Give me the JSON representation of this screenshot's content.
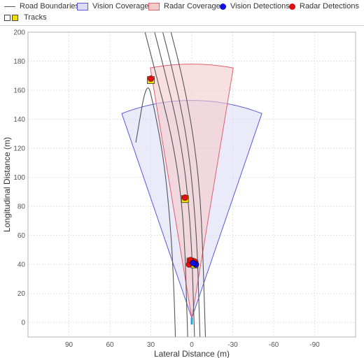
{
  "legend": {
    "items": [
      {
        "key": "road",
        "label": "Road Boundaries"
      },
      {
        "key": "vision_cov",
        "label": "Vision Coverage"
      },
      {
        "key": "radar_cov",
        "label": "Radar Coverage"
      },
      {
        "key": "vision_det",
        "label": "Vision Detections"
      },
      {
        "key": "radar_det",
        "label": "Radar Detections"
      },
      {
        "key": "tracks",
        "label": "Tracks"
      }
    ]
  },
  "colors": {
    "road": "#555555",
    "vision_fill": "#dcdcf5",
    "vision_edge": "#5a5ad6",
    "radar_fill": "#f5cccc",
    "radar_edge": "#e06070",
    "vision_det": "#1010e0",
    "radar_det": "#e01010",
    "track": "#f0e000",
    "grid": "#e4e4e4",
    "ego": "#2a9fd6"
  },
  "chart_data": {
    "type": "scatter",
    "title": "",
    "xlabel": "Lateral Distance (m)",
    "ylabel": "Longitudinal Distance (m)",
    "xlim": [
      120,
      -120
    ],
    "ylim": [
      -10,
      200
    ],
    "x_reversed": true,
    "xticks": [
      90,
      60,
      30,
      0,
      -30,
      -60,
      -90
    ],
    "yticks": [
      0,
      20,
      40,
      60,
      80,
      100,
      120,
      140,
      160,
      180,
      200
    ],
    "grid": true,
    "legend_position": "top",
    "vision_coverage": {
      "origin": [
        0,
        3
      ],
      "range": 150,
      "fov_deg": 40
    },
    "radar_coverage": {
      "origin": [
        0,
        3
      ],
      "range": 175,
      "fov_deg": 20
    },
    "road_boundaries": [
      [
        [
          3,
          -10
        ],
        [
          4,
          20
        ],
        [
          5,
          50
        ],
        [
          8,
          90
        ],
        [
          15,
          130
        ],
        [
          26,
          170
        ],
        [
          37,
          210
        ]
      ],
      [
        [
          -2,
          -10
        ],
        [
          -1,
          20
        ],
        [
          0,
          50
        ],
        [
          3,
          90
        ],
        [
          9,
          130
        ],
        [
          19,
          170
        ],
        [
          30,
          210
        ]
      ],
      [
        [
          -6,
          -10
        ],
        [
          -5,
          20
        ],
        [
          -4,
          50
        ],
        [
          -1,
          90
        ],
        [
          4,
          130
        ],
        [
          13,
          170
        ],
        [
          24,
          210
        ]
      ],
      [
        [
          -10,
          -10
        ],
        [
          -9,
          20
        ],
        [
          -8,
          50
        ],
        [
          -6,
          90
        ],
        [
          -1,
          130
        ],
        [
          7,
          170
        ],
        [
          18,
          210
        ]
      ],
      [
        [
          12,
          -10
        ],
        [
          13,
          20
        ],
        [
          15,
          60
        ],
        [
          20,
          110
        ],
        [
          28,
          150
        ],
        [
          33,
          168
        ],
        [
          41,
          124
        ]
      ]
    ],
    "vision_detections": [
      [
        -3,
        40
      ],
      [
        -1,
        41
      ]
    ],
    "radar_detections": [
      [
        30,
        168
      ],
      [
        5,
        86
      ],
      [
        2,
        40
      ],
      [
        -2,
        42
      ],
      [
        1,
        43
      ]
    ],
    "tracks": [
      [
        30,
        167
      ],
      [
        5,
        85
      ],
      [
        1,
        42
      ],
      [
        -2,
        40
      ]
    ],
    "ego": [
      0,
      1
    ]
  }
}
